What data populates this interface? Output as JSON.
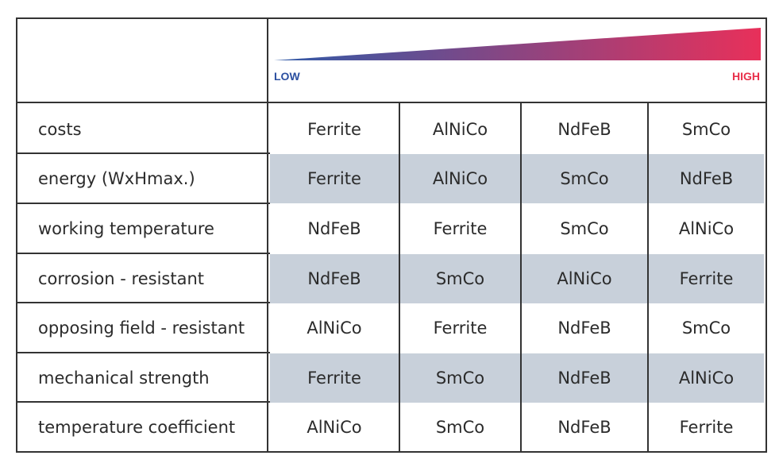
{
  "scale": {
    "low_label": "LOW",
    "high_label": "HIGH",
    "low_color": "#2f5aa8",
    "high_color": "#e8305a"
  },
  "rows": [
    {
      "label": "costs",
      "values": [
        "Ferrite",
        "AlNiCo",
        "NdFeB",
        "SmCo"
      ],
      "shaded": false
    },
    {
      "label": "energy (WxHmax.)",
      "values": [
        "Ferrite",
        "AlNiCo",
        "SmCo",
        "NdFeB"
      ],
      "shaded": true
    },
    {
      "label": "working temperature",
      "values": [
        "NdFeB",
        "Ferrite",
        "SmCo",
        "AlNiCo"
      ],
      "shaded": false
    },
    {
      "label": "corrosion - resistant",
      "values": [
        "NdFeB",
        "SmCo",
        "AlNiCo",
        "Ferrite"
      ],
      "shaded": true
    },
    {
      "label": "opposing field - resistant",
      "values": [
        "AlNiCo",
        "Ferrite",
        "NdFeB",
        "SmCo"
      ],
      "shaded": false
    },
    {
      "label": "mechanical strength",
      "values": [
        "Ferrite",
        "SmCo",
        "NdFeB",
        "AlNiCo"
      ],
      "shaded": true
    },
    {
      "label": "temperature coefficient",
      "values": [
        "AlNiCo",
        "SmCo",
        "NdFeB",
        "Ferrite"
      ],
      "shaded": false
    }
  ]
}
